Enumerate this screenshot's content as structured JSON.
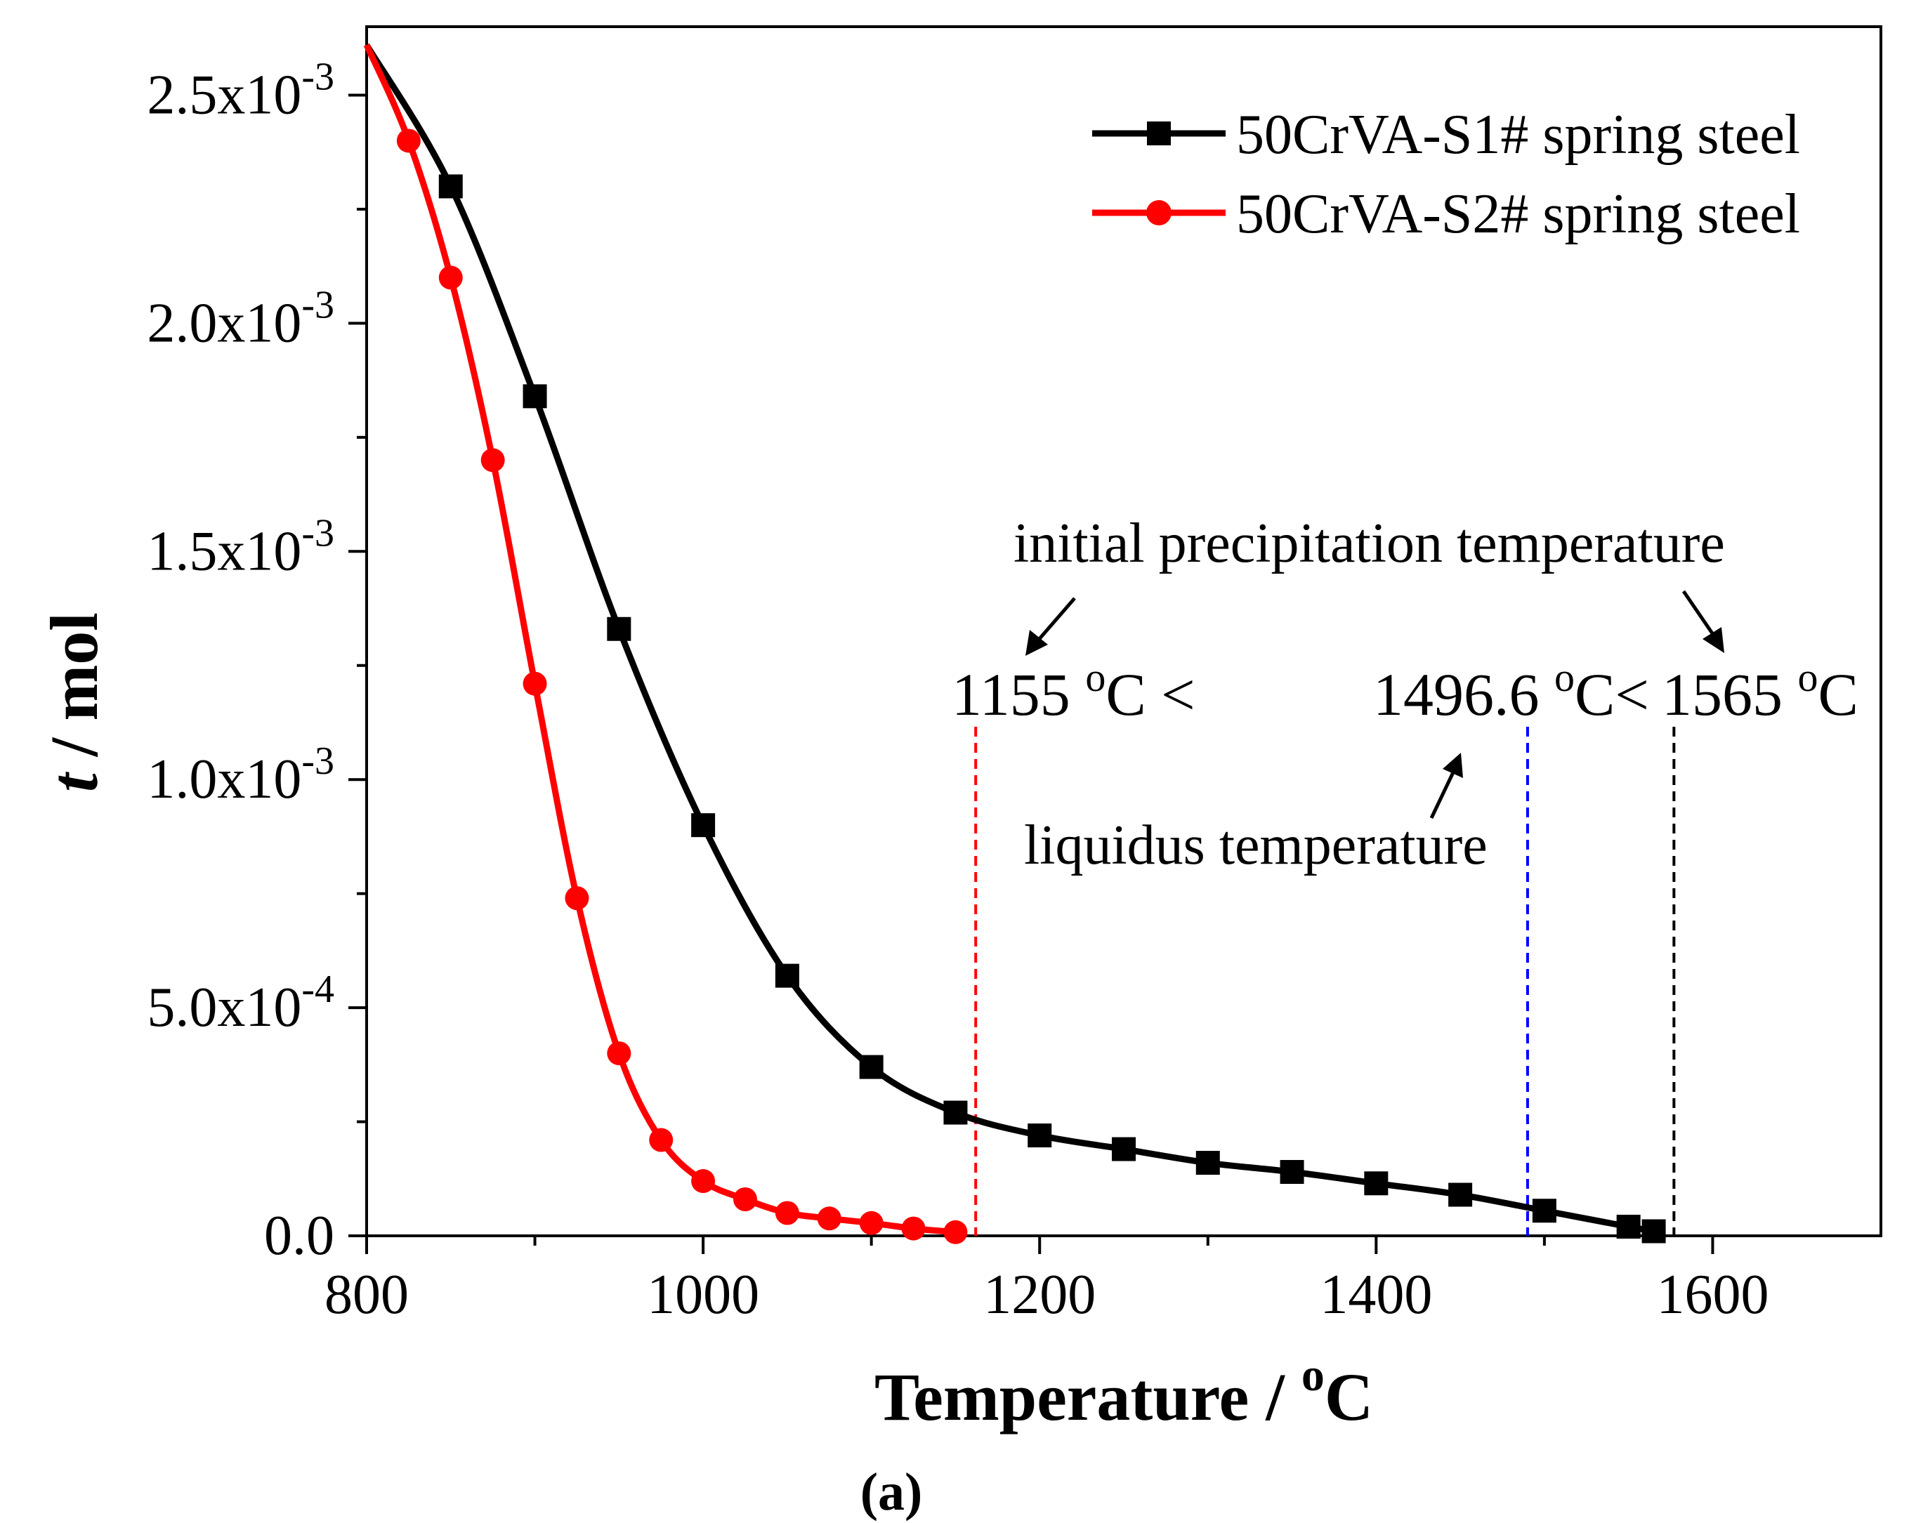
{
  "chart_data": {
    "type": "line",
    "title": "",
    "xlabel": "Temperature / ",
    "xlabel_sup": "o",
    "xlabel_unit": "C",
    "ylabel_italic": "t",
    "ylabel_rest": " / mol",
    "panel_label": "(a)",
    "xlim": [
      800,
      1700
    ],
    "ylim": [
      0,
      0.00265
    ],
    "x_ticks": [
      800,
      1000,
      1200,
      1400,
      1600
    ],
    "x_tick_labels": [
      "800",
      "1000",
      "1200",
      "1400",
      "1600"
    ],
    "y_ticks": [
      0,
      0.0005,
      0.001,
      0.0015,
      0.002,
      0.0025
    ],
    "y_tick_labels": [
      {
        "mant": "0.0",
        "exp": ""
      },
      {
        "mant": "5.0x10",
        "exp": "-4"
      },
      {
        "mant": "1.0x10",
        "exp": "-3"
      },
      {
        "mant": "1.5x10",
        "exp": "-3"
      },
      {
        "mant": "2.0x10",
        "exp": "-3"
      },
      {
        "mant": "2.5x10",
        "exp": "-3"
      }
    ],
    "legend_position": "top-right",
    "grid": false,
    "series": [
      {
        "name": "50CrVA-S1# spring steel",
        "color": "#000000",
        "marker": "square",
        "x": [
          800,
          850,
          900,
          950,
          1000,
          1050,
          1100,
          1150,
          1200,
          1250,
          1300,
          1350,
          1400,
          1450,
          1500,
          1550,
          1565
        ],
        "y": [
          0.00261,
          0.0023,
          0.00184,
          0.00133,
          0.0009,
          0.00057,
          0.00037,
          0.00027,
          0.00022,
          0.00019,
          0.00016,
          0.00014,
          0.000115,
          9e-05,
          5.5e-05,
          2e-05,
          1e-05
        ],
        "marker_x": [
          850,
          900,
          950,
          1000,
          1050,
          1100,
          1150,
          1200,
          1250,
          1300,
          1350,
          1400,
          1450,
          1500,
          1550,
          1565
        ]
      },
      {
        "name": "50CrVA-S2# spring steel",
        "color": "#ff0000",
        "marker": "circle",
        "x": [
          800,
          825,
          850,
          875,
          900,
          925,
          950,
          975,
          1000,
          1025,
          1050,
          1075,
          1100,
          1125,
          1150,
          1155
        ],
        "y": [
          0.00261,
          0.0024,
          0.0021,
          0.0017,
          0.00121,
          0.00074,
          0.0004,
          0.00021,
          0.00012,
          8e-05,
          5e-05,
          3.8e-05,
          2.8e-05,
          1.6e-05,
          8e-06,
          6e-06
        ],
        "marker_x": [
          825,
          850,
          875,
          900,
          925,
          950,
          975,
          1000,
          1025,
          1050,
          1075,
          1100,
          1125,
          1150
        ]
      }
    ],
    "reference_lines": [
      {
        "x": 1162,
        "color": "#ff0000"
      },
      {
        "x": 1490,
        "color": "#0000ff"
      },
      {
        "x": 1577,
        "color": "#000000"
      }
    ],
    "annotations": {
      "initial_precipitation": "initial precipitation temperature",
      "liquidus": "liquidus temperature",
      "t1155_num": "1155 ",
      "t1155_sup": "o",
      "t1155_unit": "C <",
      "t1496_num": "1496.6 ",
      "t1496_sup": "o",
      "t1496_unit": "C<",
      "t1565_num": "1565 ",
      "t1565_sup": "o",
      "t1565_unit": "C"
    }
  }
}
